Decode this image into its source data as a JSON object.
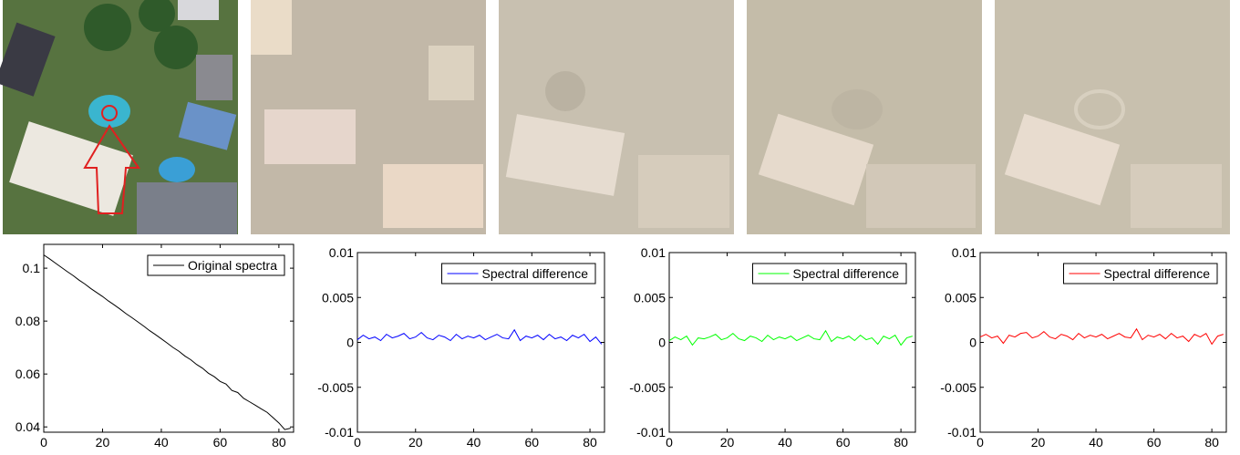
{
  "chart_data": [
    {
      "type": "line",
      "x": [
        0,
        2,
        4,
        6,
        8,
        10,
        12,
        14,
        16,
        18,
        20,
        22,
        24,
        26,
        28,
        30,
        32,
        34,
        36,
        38,
        40,
        42,
        44,
        46,
        48,
        50,
        52,
        54,
        56,
        58,
        60,
        62,
        64,
        66,
        68,
        70,
        72,
        74,
        76,
        78,
        80,
        82,
        84
      ],
      "series": [
        {
          "name": "Original spectra",
          "color": "#000000",
          "values": [
            0.105,
            0.1035,
            0.1019,
            0.1003,
            0.0987,
            0.0972,
            0.0955,
            0.094,
            0.0923,
            0.0908,
            0.0893,
            0.0876,
            0.0861,
            0.0845,
            0.0828,
            0.0813,
            0.0797,
            0.0781,
            0.0764,
            0.0749,
            0.0733,
            0.0717,
            0.07,
            0.0686,
            0.0668,
            0.0654,
            0.0636,
            0.0622,
            0.0603,
            0.059,
            0.0572,
            0.0562,
            0.0538,
            0.053,
            0.0508,
            0.0495,
            0.0482,
            0.0468,
            0.0455,
            0.0435,
            0.0415,
            0.039,
            0.0395
          ]
        }
      ],
      "xlim": [
        0,
        85
      ],
      "xticks": [
        0,
        20,
        40,
        60,
        80
      ],
      "ylim": [
        0.038,
        0.109
      ],
      "yticks": [
        0.04,
        0.06,
        0.08,
        0.1
      ],
      "legend": "upper right"
    },
    {
      "type": "line",
      "x": [
        0,
        2,
        4,
        6,
        8,
        10,
        12,
        14,
        16,
        18,
        20,
        22,
        24,
        26,
        28,
        30,
        32,
        34,
        36,
        38,
        40,
        42,
        44,
        46,
        48,
        50,
        52,
        54,
        56,
        58,
        60,
        62,
        64,
        66,
        68,
        70,
        72,
        74,
        76,
        78,
        80,
        82,
        84
      ],
      "series": [
        {
          "name": "Spectral difference",
          "color": "#0000ff",
          "values": [
            0.0003,
            0.0008,
            0.0004,
            0.0006,
            0.0002,
            0.0009,
            0.0005,
            0.0007,
            0.001,
            0.0004,
            0.0006,
            0.0011,
            0.0005,
            0.0003,
            0.0008,
            0.0006,
            0.0002,
            0.0009,
            0.0004,
            0.0007,
            0.0005,
            0.0008,
            0.0003,
            0.0006,
            0.0009,
            0.0005,
            0.0004,
            0.0014,
            0.0002,
            0.0007,
            0.0005,
            0.0008,
            0.0003,
            0.0009,
            0.0004,
            0.0006,
            0.0002,
            0.0008,
            0.0005,
            0.0009,
            0.0001,
            0.0006,
            -0.0002
          ]
        }
      ],
      "xlim": [
        0,
        85
      ],
      "xticks": [
        0,
        20,
        40,
        60,
        80
      ],
      "ylim": [
        -0.01,
        0.01
      ],
      "yticks": [
        -0.01,
        -0.005,
        0,
        0.005,
        0.01
      ],
      "legend": "upper right"
    },
    {
      "type": "line",
      "x": [
        0,
        2,
        4,
        6,
        8,
        10,
        12,
        14,
        16,
        18,
        20,
        22,
        24,
        26,
        28,
        30,
        32,
        34,
        36,
        38,
        40,
        42,
        44,
        46,
        48,
        50,
        52,
        54,
        56,
        58,
        60,
        62,
        64,
        66,
        68,
        70,
        72,
        74,
        76,
        78,
        80,
        82,
        84
      ],
      "series": [
        {
          "name": "Spectral difference",
          "color": "#00ff00",
          "values": [
            0.0002,
            0.0006,
            0.0003,
            0.0007,
            -0.0003,
            0.0005,
            0.0004,
            0.0006,
            0.0009,
            0.0003,
            0.0005,
            0.001,
            0.0004,
            0.0002,
            0.0007,
            0.0005,
            0.0001,
            0.0008,
            0.0003,
            0.0006,
            0.0004,
            0.0007,
            0.0002,
            0.0005,
            0.0008,
            0.0004,
            0.0003,
            0.0013,
            0.0001,
            0.0006,
            0.0004,
            0.0007,
            0.0002,
            0.0008,
            0.0003,
            0.0005,
            -0.0002,
            0.0007,
            0.0004,
            0.0008,
            -0.0003,
            0.0005,
            0.0007
          ]
        }
      ],
      "xlim": [
        0,
        85
      ],
      "xticks": [
        0,
        20,
        40,
        60,
        80
      ],
      "ylim": [
        -0.01,
        0.01
      ],
      "yticks": [
        -0.01,
        -0.005,
        0,
        0.005,
        0.01
      ],
      "legend": "upper right"
    },
    {
      "type": "line",
      "x": [
        0,
        2,
        4,
        6,
        8,
        10,
        12,
        14,
        16,
        18,
        20,
        22,
        24,
        26,
        28,
        30,
        32,
        34,
        36,
        38,
        40,
        42,
        44,
        46,
        48,
        50,
        52,
        54,
        56,
        58,
        60,
        62,
        64,
        66,
        68,
        70,
        72,
        74,
        76,
        78,
        80,
        82,
        84
      ],
      "series": [
        {
          "name": "Spectral difference",
          "color": "#ff0000",
          "values": [
            0.0006,
            0.0009,
            0.0005,
            0.0007,
            -0.0001,
            0.0008,
            0.0006,
            0.001,
            0.0011,
            0.0005,
            0.0007,
            0.0012,
            0.0006,
            0.0004,
            0.0009,
            0.0007,
            0.0003,
            0.001,
            0.0005,
            0.0008,
            0.0006,
            0.0009,
            0.0004,
            0.0007,
            0.001,
            0.0006,
            0.0005,
            0.0015,
            0.0003,
            0.0008,
            0.0006,
            0.0009,
            0.0004,
            0.001,
            0.0005,
            0.0007,
            0.0001,
            0.0009,
            0.0006,
            0.001,
            -0.0002,
            0.0007,
            0.0009
          ]
        }
      ],
      "xlim": [
        0,
        85
      ],
      "xticks": [
        0,
        20,
        40,
        60,
        80
      ],
      "ylim": [
        -0.01,
        0.01
      ],
      "yticks": [
        -0.01,
        -0.005,
        0,
        0.005,
        0.01
      ],
      "legend": "upper right"
    }
  ]
}
